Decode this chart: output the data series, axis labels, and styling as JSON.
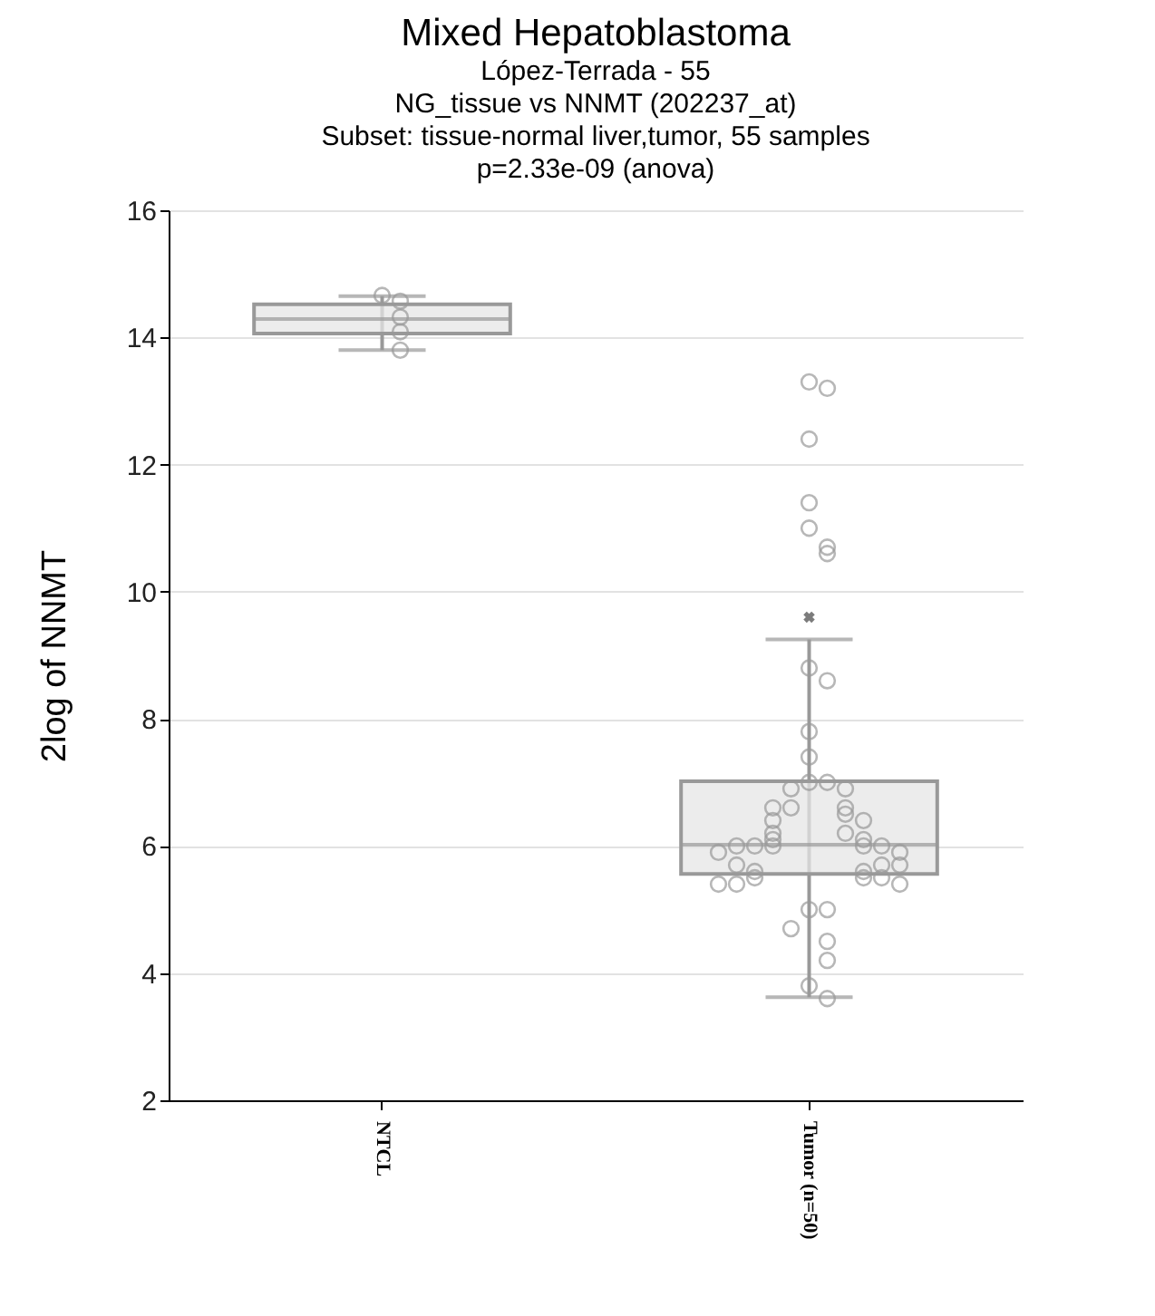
{
  "chart_data": {
    "type": "box",
    "title": "Mixed Hepatoblastoma",
    "subtitle": "López-Terrada - 55\nNG_tissue vs NNMT (202237_at)\nSubset: tissue-normal liver,tumor, 55 samples\np=2.33e-09  (anova)",
    "ylabel": "2log of NNMT",
    "categories": [
      "NTCL",
      "Tumor (n=50)"
    ],
    "boxes": [
      {
        "low": 13.8,
        "q1": 14.06,
        "median": 14.29,
        "q3": 14.52,
        "high": 14.65
      },
      {
        "low": 3.62,
        "q1": 5.56,
        "median": 6.02,
        "q3": 7.02,
        "high": 9.25,
        "mean": 9.6
      }
    ],
    "series": [
      {
        "type": "scatter",
        "color": "#999999",
        "x": [
          "NTCL",
          "NTCL",
          "NTCL",
          "NTCL",
          "NTCL",
          "Tumor (n=50)",
          "Tumor (n=50)",
          "Tumor (n=50)",
          "Tumor (n=50)",
          "Tumor (n=50)",
          "Tumor (n=50)",
          "Tumor (n=50)",
          "Tumor (n=50)",
          "Tumor (n=50)",
          "Tumor (n=50)",
          "Tumor (n=50)",
          "Tumor (n=50)",
          "Tumor (n=50)",
          "Tumor (n=50)",
          "Tumor (n=50)",
          "Tumor (n=50)",
          "Tumor (n=50)",
          "Tumor (n=50)",
          "Tumor (n=50)",
          "Tumor (n=50)",
          "Tumor (n=50)",
          "Tumor (n=50)",
          "Tumor (n=50)",
          "Tumor (n=50)",
          "Tumor (n=50)",
          "Tumor (n=50)",
          "Tumor (n=50)",
          "Tumor (n=50)",
          "Tumor (n=50)",
          "Tumor (n=50)",
          "Tumor (n=50)",
          "Tumor (n=50)",
          "Tumor (n=50)",
          "Tumor (n=50)",
          "Tumor (n=50)",
          "Tumor (n=50)",
          "Tumor (n=50)",
          "Tumor (n=50)",
          "Tumor (n=50)",
          "Tumor (n=50)",
          "Tumor (n=50)",
          "Tumor (n=50)",
          "Tumor (n=50)",
          "Tumor (n=50)",
          "Tumor (n=50)",
          "Tumor (n=50)",
          "Tumor (n=50)",
          "Tumor (n=50)",
          "Tumor (n=50)",
          "Tumor (n=50)"
        ],
        "values": [
          14.66,
          14.57,
          14.32,
          14.09,
          13.8,
          13.3,
          13.2,
          12.4,
          11.4,
          11.0,
          10.7,
          10.6,
          8.8,
          8.6,
          7.8,
          7.4,
          7.0,
          7.0,
          6.9,
          6.9,
          6.6,
          6.6,
          6.6,
          6.5,
          6.4,
          6.4,
          6.2,
          6.2,
          6.1,
          6.1,
          6.0,
          6.0,
          6.0,
          6.0,
          6.0,
          5.9,
          5.9,
          5.7,
          5.7,
          5.7,
          5.6,
          5.6,
          5.5,
          5.5,
          5.5,
          5.4,
          5.4,
          5.4,
          5.0,
          5.0,
          4.7,
          4.5,
          4.2,
          3.8,
          3.6
        ]
      }
    ],
    "ylim": [
      2,
      16
    ],
    "yticks": [
      2,
      4,
      6,
      8,
      10,
      12,
      14,
      16
    ],
    "grid": "y",
    "marker": "circle"
  }
}
